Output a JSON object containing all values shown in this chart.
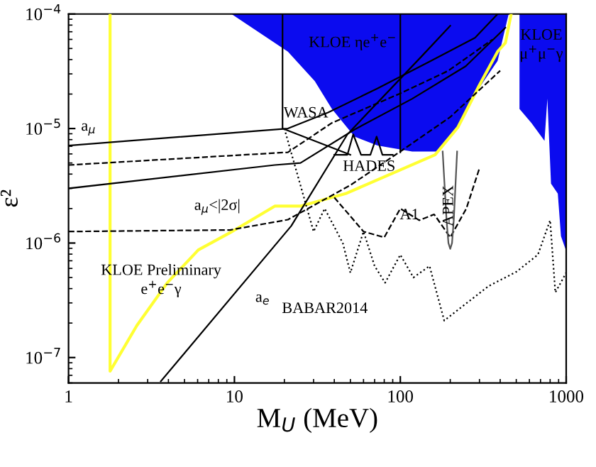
{
  "chart_data": {
    "type": "line",
    "log": "xy",
    "xlabel": "M$_{U}$ (MeV)",
    "ylabel": "ε²",
    "xlim": [
      1,
      1000
    ],
    "ylim": [
      6e-08,
      0.0001
    ],
    "xticks": [
      1,
      10,
      100,
      1000
    ],
    "yticks": [
      {
        "value": 1e-07,
        "label": "10$^{−7}$"
      },
      {
        "value": 1e-06,
        "label": "10$^{−6}$"
      },
      {
        "value": 1e-05,
        "label": "10$^{−5}$"
      },
      {
        "value": 0.0001,
        "label": "10$^{−4}$"
      }
    ],
    "legend": false,
    "grid": false,
    "series": [
      {
        "type": "area",
        "color": "#0b0bef",
        "x": [
          9.6,
          21,
          30.5,
          38.7,
          53,
          72.8,
          118,
          171,
          222,
          282,
          386,
          430,
          450
        ],
        "values": [
          0.0001,
          4.7e-05,
          2.6e-05,
          1.48e-05,
          8.5e-06,
          7.1e-06,
          6.3e-06,
          6.3e-06,
          1.02e-05,
          2e-05,
          3.9e-05,
          7.6e-05,
          0.0001
        ]
      },
      {
        "type": "area",
        "color": "#0b0bef",
        "x": [
          523,
          523,
          617,
          740,
          770,
          810,
          890,
          930,
          1000,
          1000
        ],
        "values": [
          0.0001,
          1.48e-05,
          1.12e-05,
          7.8e-06,
          1.82e-05,
          3.3e-06,
          2.7e-06,
          1.15e-06,
          8.5e-07,
          0.0001
        ]
      },
      {
        "color": "#ffff33",
        "line_style": "solid",
        "x": [
          1.78,
          1.78,
          2.58,
          3.94,
          6.06,
          9.4,
          17.5,
          25,
          46.8,
          162,
          222,
          300,
          386,
          430,
          466
        ],
        "values": [
          0.0001,
          7.6e-08,
          1.9e-07,
          4.5e-07,
          8.7e-07,
          1.23e-06,
          2.1e-06,
          2.1e-06,
          2.7e-06,
          5.9e-06,
          1.02e-05,
          2.4e-05,
          4.7e-05,
          5.6e-05,
          0.0001
        ]
      },
      {
        "color": "#000000",
        "line_style": "solid",
        "x": [
          1,
          21,
          36.7,
          73,
          153,
          282,
          386
        ],
        "values": [
          7.1e-06,
          1e-05,
          1.38e-05,
          2.24e-05,
          3.9e-05,
          6.2e-05,
          0.0001
        ]
      },
      {
        "color": "#000000",
        "line_style": "solid",
        "x": [
          1,
          17.5,
          25,
          53,
          118,
          248,
          430
        ],
        "values": [
          3e-06,
          4.8e-06,
          5e-06,
          9.8e-06,
          1.82e-05,
          3.5e-05,
          7.6e-05
        ]
      },
      {
        "color": "#000000",
        "line_style": "dashed",
        "x": [
          1,
          21,
          38.7,
          98,
          195,
          360
        ],
        "values": [
          4.8e-06,
          6.2e-06,
          1.12e-05,
          2e-05,
          3.2e-05,
          6e-05
        ]
      },
      {
        "color": "#000000",
        "line_style": "dashed",
        "x": [
          1,
          9.4,
          21,
          50,
          100,
          200,
          400
        ],
        "values": [
          1.26e-06,
          1.3e-06,
          1.6e-06,
          3.2e-06,
          6.3e-06,
          1.26e-05,
          3.2e-05
        ]
      },
      {
        "color": "#000000",
        "line_style": "solid",
        "x": [
          3.6,
          22,
          48,
          135,
          200
        ],
        "values": [
          6.2e-08,
          1.41e-06,
          8.9e-06,
          4.3e-05,
          7.9e-05
        ]
      },
      {
        "color": "#000000",
        "line_style": "solid",
        "x": [
          19.5,
          19.5,
          50
        ],
        "values": [
          0.0001,
          1e-05,
          5.9e-06
        ]
      },
      {
        "color": "#000000",
        "line_style": "solid",
        "x": [
          40,
          48,
          52,
          58,
          66,
          72,
          78,
          90
        ],
        "values": [
          5.9e-06,
          5.9e-06,
          8.9e-06,
          5.9e-06,
          5.9e-06,
          8.5e-06,
          5.9e-06,
          5.9e-06
        ]
      },
      {
        "color": "#000000",
        "line_style": "solid",
        "x": [
          100,
          100
        ],
        "values": [
          0.0001,
          6.2e-06
        ]
      },
      {
        "color": "#000000",
        "line_style": "dashed",
        "x": [
          40,
          60,
          80,
          100,
          130,
          160,
          200,
          250,
          300
        ],
        "values": [
          2.5e-06,
          1.26e-06,
          1.12e-06,
          2e-06,
          1.58e-06,
          1.78e-06,
          1.12e-06,
          2e-06,
          4.5e-06
        ]
      },
      {
        "color": "#000000",
        "line_style": "dotted",
        "x": [
          20,
          25,
          30,
          35,
          45,
          50,
          60,
          70,
          81,
          100,
          120,
          150,
          184,
          222,
          340,
          500,
          675,
          800,
          860,
          1000
        ],
        "values": [
          1e-05,
          3.2e-06,
          1.26e-06,
          2e-06,
          1e-06,
          5.5e-07,
          1.26e-06,
          6.3e-07,
          4.5e-07,
          7.9e-07,
          5e-07,
          6.3e-07,
          2.1e-07,
          2.6e-07,
          4.2e-07,
          5.6e-07,
          7.9e-07,
          1.58e-06,
          3.7e-07,
          5.5e-07
        ]
      },
      {
        "color": "#555555",
        "line_style": "solid",
        "x": [
          180,
          190,
          195,
          200,
          205,
          210,
          220
        ],
        "values": [
          6.3e-06,
          1.58e-06,
          1e-06,
          8.9e-07,
          1e-06,
          1.58e-06,
          6.3e-06
        ]
      }
    ],
    "annotations": [
      "KLOE ηe$^{+}$e$^{−}$",
      "KLOE\nμ$^{+}$μ$^{−}$γ",
      "WASA",
      "HADES",
      "APEX",
      "A1",
      "a$_{μ}$",
      "a$_{μ}$<|2σ|",
      "a$_{e}$",
      "KLOE Preliminary\ne$^{+}$e$^{−}$γ",
      "BABAR2014"
    ]
  }
}
